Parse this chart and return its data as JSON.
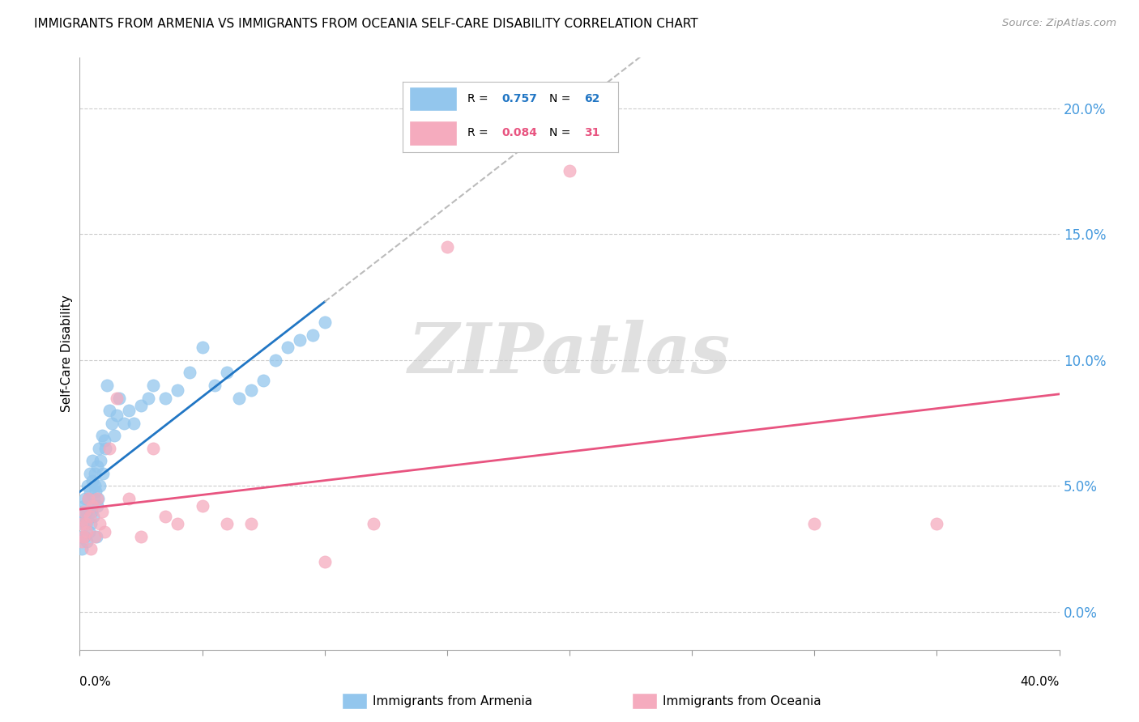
{
  "title": "IMMIGRANTS FROM ARMENIA VS IMMIGRANTS FROM OCEANIA SELF-CARE DISABILITY CORRELATION CHART",
  "source": "Source: ZipAtlas.com",
  "ylabel": "Self-Care Disability",
  "right_yticks": [
    "0.0%",
    "5.0%",
    "10.0%",
    "15.0%",
    "20.0%"
  ],
  "right_ytick_vals": [
    0.0,
    5.0,
    10.0,
    15.0,
    20.0
  ],
  "xlim": [
    0.0,
    40.0
  ],
  "ylim": [
    -1.5,
    22.0
  ],
  "legend_R1": "0.757",
  "legend_N1": "62",
  "legend_R2": "0.084",
  "legend_N2": "31",
  "armenia_color": "#93C6ED",
  "oceania_color": "#F5ABBE",
  "armenia_line_color": "#2176C4",
  "oceania_line_color": "#E85480",
  "dashed_line_color": "#BBBBBB",
  "watermark": "ZIPatlas",
  "armenia_x": [
    0.05,
    0.08,
    0.1,
    0.12,
    0.15,
    0.18,
    0.2,
    0.22,
    0.25,
    0.28,
    0.3,
    0.32,
    0.35,
    0.38,
    0.4,
    0.42,
    0.45,
    0.48,
    0.5,
    0.52,
    0.55,
    0.58,
    0.6,
    0.62,
    0.65,
    0.68,
    0.7,
    0.72,
    0.75,
    0.78,
    0.8,
    0.85,
    0.9,
    0.95,
    1.0,
    1.05,
    1.1,
    1.2,
    1.3,
    1.4,
    1.5,
    1.6,
    1.8,
    2.0,
    2.2,
    2.5,
    2.8,
    3.0,
    3.5,
    4.0,
    4.5,
    5.0,
    5.5,
    6.0,
    6.5,
    7.0,
    7.5,
    8.0,
    8.5,
    9.0,
    9.5,
    10.0
  ],
  "armenia_y": [
    3.0,
    2.5,
    4.0,
    3.5,
    3.8,
    4.2,
    3.0,
    4.5,
    3.5,
    2.8,
    4.0,
    5.0,
    4.5,
    3.2,
    5.5,
    4.8,
    3.5,
    4.0,
    5.2,
    6.0,
    3.8,
    4.5,
    5.0,
    5.5,
    4.8,
    3.0,
    4.2,
    5.8,
    4.5,
    6.5,
    5.0,
    6.0,
    7.0,
    5.5,
    6.8,
    6.5,
    9.0,
    8.0,
    7.5,
    7.0,
    7.8,
    8.5,
    7.5,
    8.0,
    7.5,
    8.2,
    8.5,
    9.0,
    8.5,
    8.8,
    9.5,
    10.5,
    9.0,
    9.5,
    8.5,
    8.8,
    9.2,
    10.0,
    10.5,
    10.8,
    11.0,
    11.5
  ],
  "oceania_x": [
    0.05,
    0.1,
    0.15,
    0.2,
    0.25,
    0.3,
    0.35,
    0.4,
    0.45,
    0.5,
    0.6,
    0.7,
    0.8,
    0.9,
    1.0,
    1.2,
    1.5,
    2.0,
    2.5,
    3.0,
    3.5,
    4.0,
    5.0,
    6.0,
    7.0,
    10.0,
    12.0,
    15.0,
    20.0,
    30.0,
    35.0
  ],
  "oceania_y": [
    3.5,
    2.8,
    3.0,
    4.0,
    3.5,
    3.2,
    4.5,
    3.8,
    2.5,
    4.2,
    3.0,
    4.5,
    3.5,
    4.0,
    3.2,
    6.5,
    8.5,
    4.5,
    3.0,
    6.5,
    3.8,
    3.5,
    4.2,
    3.5,
    3.5,
    2.0,
    3.5,
    14.5,
    17.5,
    3.5,
    3.5
  ],
  "arm_line_start_x": 0.0,
  "arm_line_start_y": 3.5,
  "arm_line_end_x": 10.0,
  "arm_line_end_y": 10.5,
  "arm_dash_end_x": 40.0,
  "arm_dash_end_y": 35.0,
  "oce_line_start_x": 0.0,
  "oce_line_start_y": 3.5,
  "oce_line_end_x": 40.0,
  "oce_line_end_y": 5.5
}
